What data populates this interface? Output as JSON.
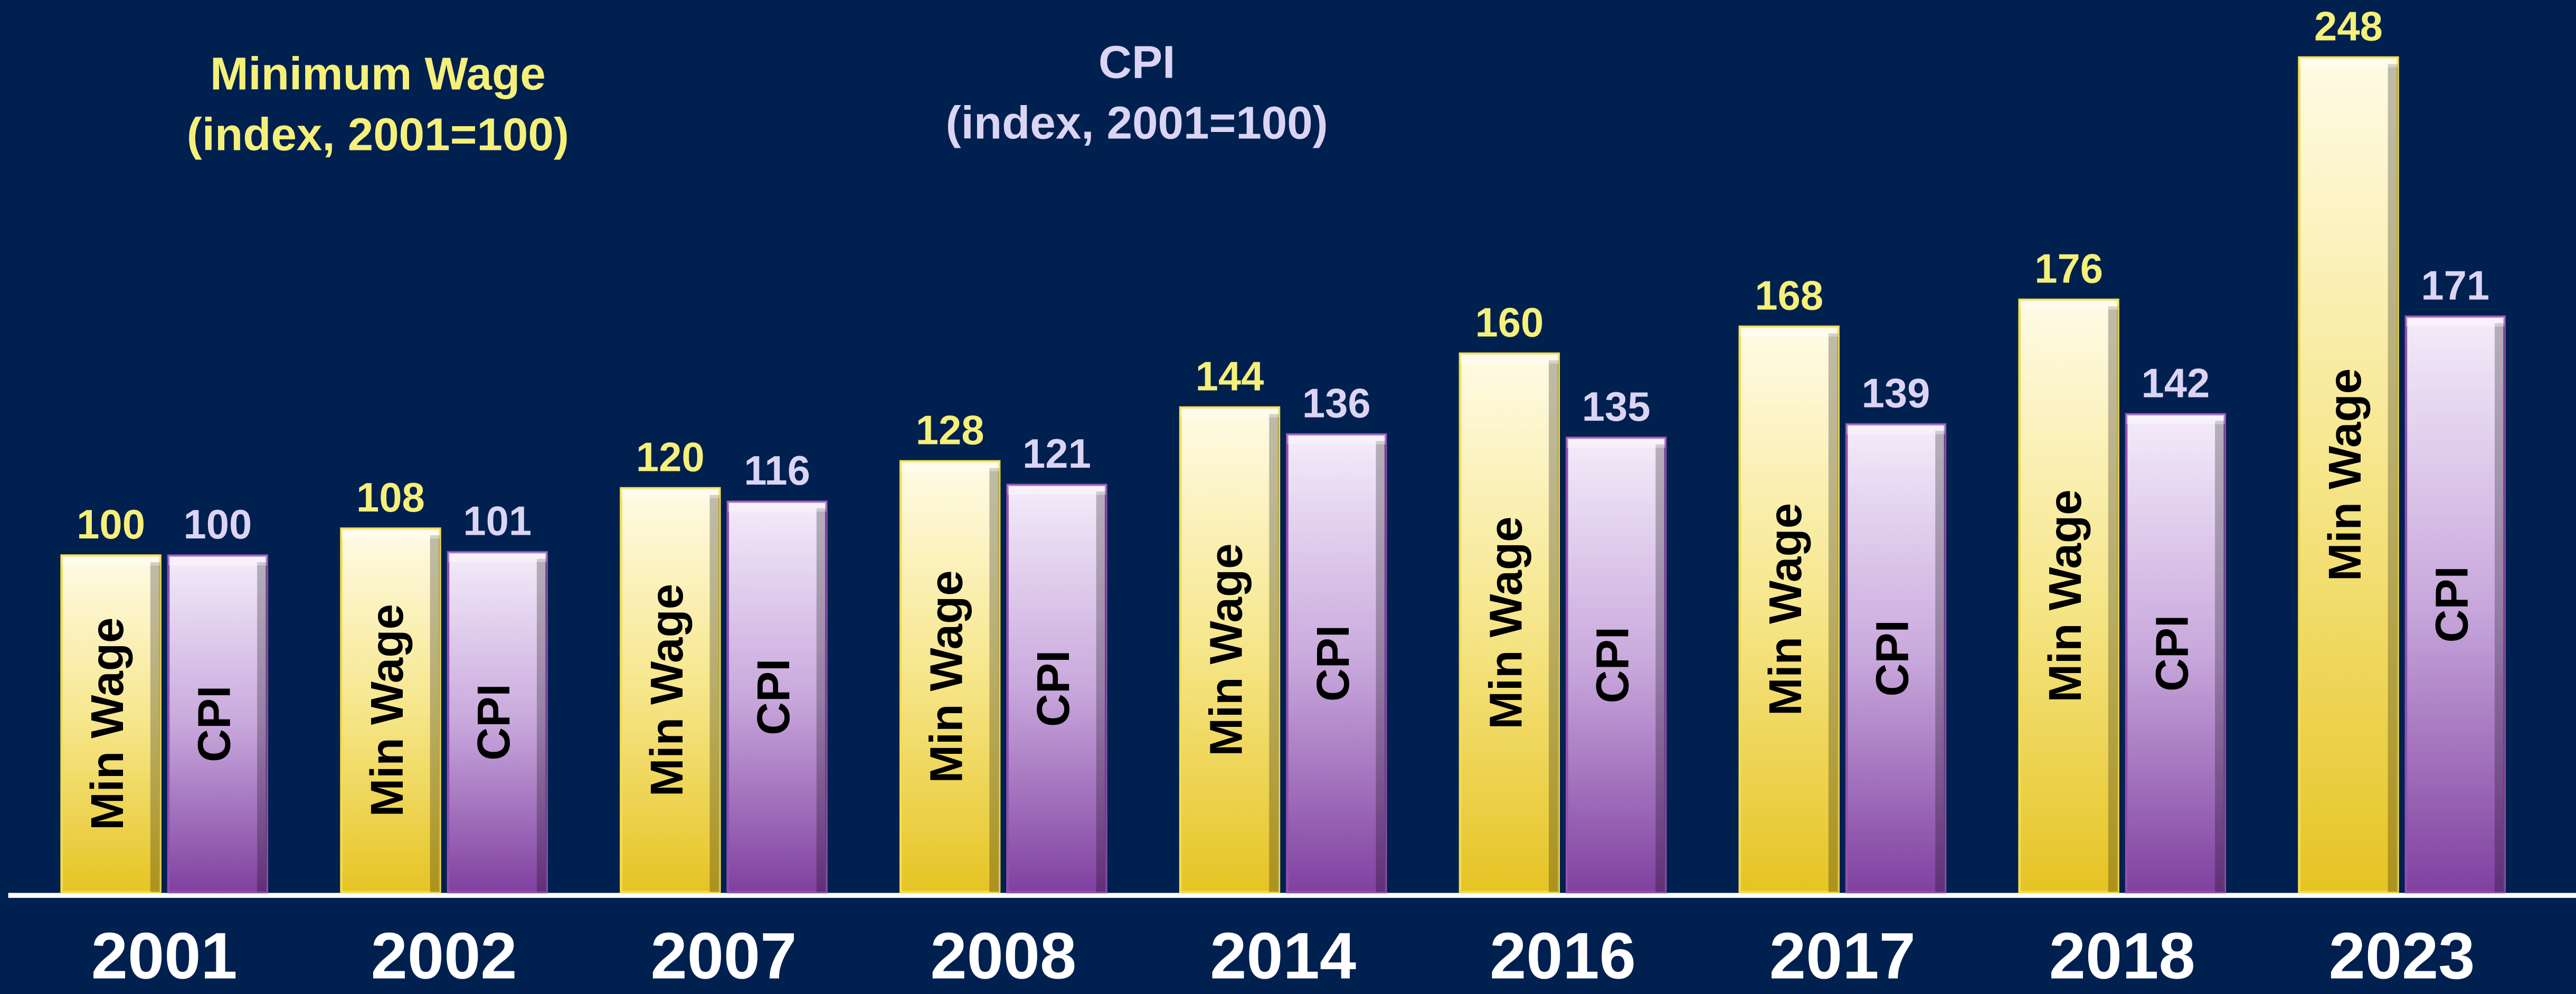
{
  "chart_data": {
    "type": "bar",
    "categories": [
      "2001",
      "2002",
      "2007",
      "2008",
      "2014",
      "2016",
      "2017",
      "2018",
      "2023"
    ],
    "series": [
      {
        "name": "Min Wage",
        "color": "#f2dc50",
        "values": [
          100,
          108,
          120,
          128,
          144,
          160,
          168,
          176,
          248
        ]
      },
      {
        "name": "CPI",
        "color": "#9050b0",
        "values": [
          100,
          101,
          116,
          121,
          136,
          135,
          139,
          142,
          171
        ]
      }
    ],
    "annotations": [
      {
        "lines": [
          "Minimum Wage",
          "(index, 2001=100)"
        ],
        "color": "#f5f07a"
      },
      {
        "lines": [
          "CPI",
          "(index, 2001=100)"
        ],
        "color": "#dcd4f4"
      }
    ]
  }
}
